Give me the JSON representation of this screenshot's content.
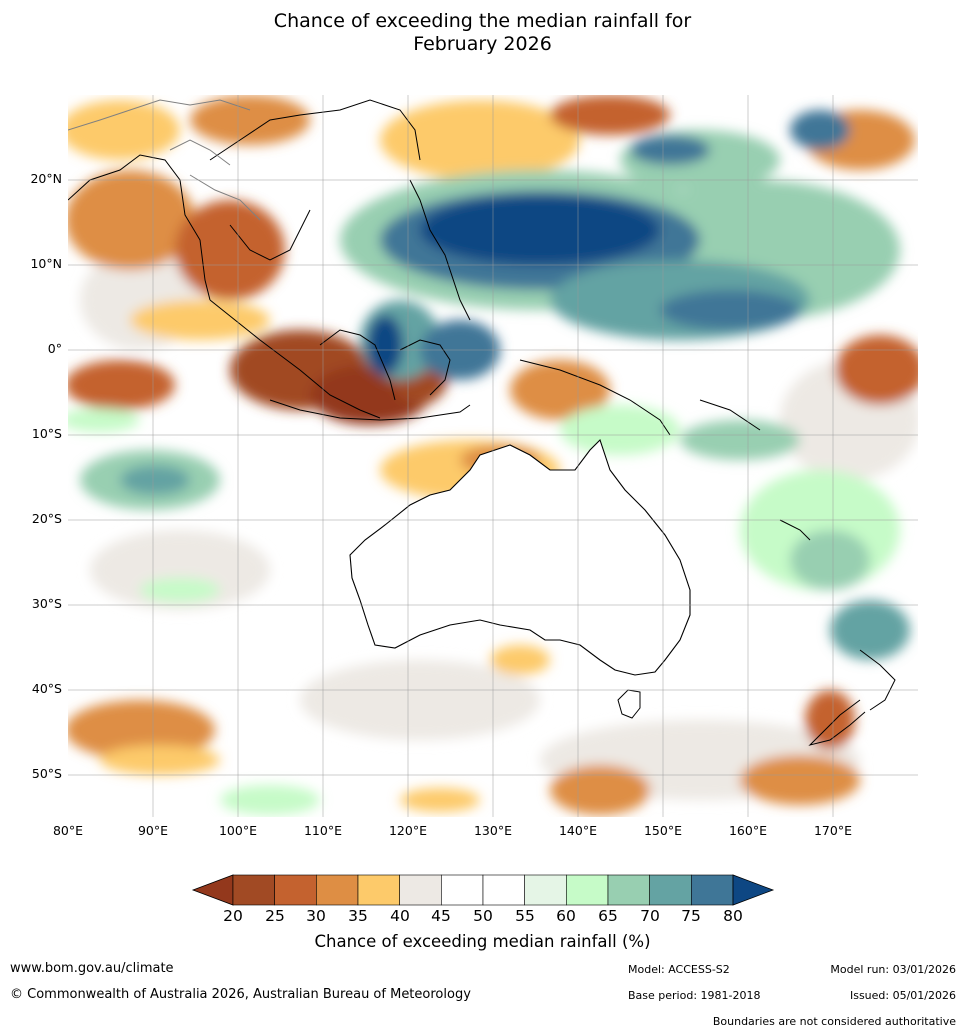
{
  "title": {
    "line1": "Chance of exceeding the median rainfall for",
    "line2": "February 2026"
  },
  "map": {
    "lat_labels": [
      "20°N",
      "10°N",
      "0°",
      "10°S",
      "20°S",
      "30°S",
      "40°S",
      "50°S"
    ],
    "lon_labels": [
      "80°E",
      "90°E",
      "100°E",
      "110°E",
      "120°E",
      "130°E",
      "140°E",
      "150°E",
      "160°E",
      "170°E"
    ],
    "extent": {
      "lon": [
        80,
        180
      ],
      "lat": [
        -55,
        30
      ]
    }
  },
  "colorbar": {
    "ticks": [
      "20",
      "25",
      "30",
      "35",
      "40",
      "45",
      "50",
      "55",
      "60",
      "65",
      "70",
      "75",
      "80"
    ],
    "colors": [
      "#a14a24",
      "#c4622f",
      "#de8e44",
      "#fdca6a",
      "#ede9e4",
      "#ffffff",
      "#ffffff",
      "#e5f5e6",
      "#c6fbc8",
      "#98cfb1",
      "#64a3a3",
      "#3f7697"
    ],
    "extend_low_color": "#93381c",
    "extend_high_color": "#0e4783",
    "label": "Chance of exceeding median rainfall (%)"
  },
  "footer": {
    "website": "www.bom.gov.au/climate",
    "copyright": "© Commonwealth of Australia 2026, Australian Bureau of Meteorology",
    "model": "Model: ACCESS-S2",
    "base_period": "Base period: 1981-2018",
    "model_run": "Model run: 03/01/2026",
    "issued": "Issued: 05/01/2026",
    "disclaimer": "Boundaries are not considered authoritative"
  }
}
